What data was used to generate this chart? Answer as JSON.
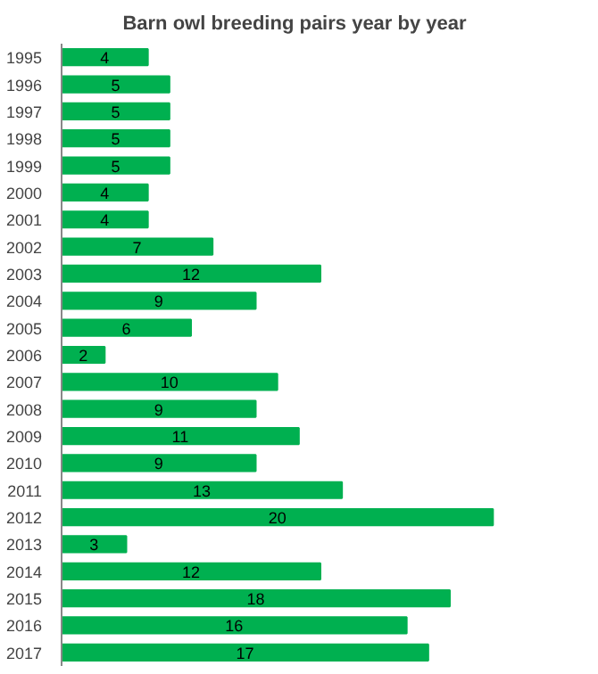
{
  "chart_data": {
    "type": "bar",
    "orientation": "horizontal",
    "title": "Barn owl breeding pairs year by year",
    "categories": [
      "1995",
      "1996",
      "1997",
      "1998",
      "1999",
      "2000",
      "2001",
      "2002",
      "2003",
      "2004",
      "2005",
      "2006",
      "2007",
      "2008",
      "2009",
      "2010",
      "2011",
      "2012",
      "2013",
      "2014",
      "2015",
      "2016",
      "2017"
    ],
    "values": [
      4,
      5,
      5,
      5,
      5,
      4,
      4,
      7,
      12,
      9,
      6,
      2,
      10,
      9,
      11,
      9,
      13,
      20,
      3,
      12,
      18,
      16,
      17
    ],
    "color": "#00b050",
    "data_labels": true
  }
}
